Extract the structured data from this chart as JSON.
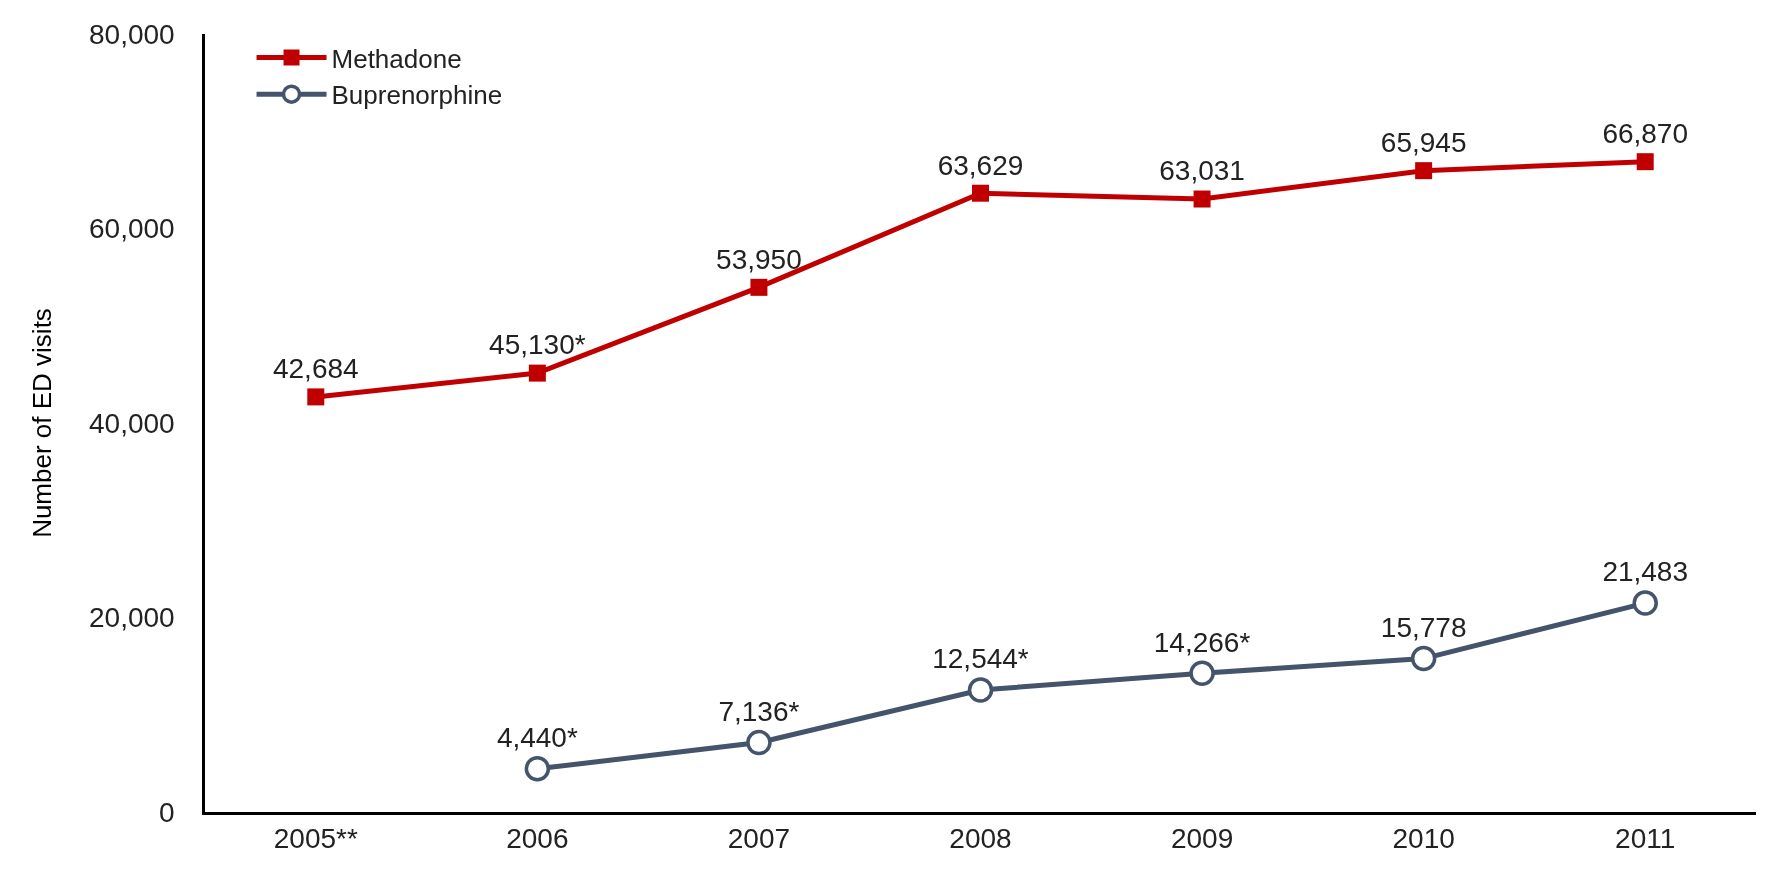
{
  "chart_data": {
    "type": "line",
    "categories": [
      "2005**",
      "2006",
      "2007",
      "2008",
      "2009",
      "2010",
      "2011"
    ],
    "series": [
      {
        "name": "Methadone",
        "color": "#c00000",
        "marker": "square",
        "values": [
          42684,
          45130,
          53950,
          63629,
          63031,
          65945,
          66870
        ],
        "value_labels": [
          "42,684",
          "45,130*",
          "53,950",
          "63,629",
          "63,031",
          "65,945",
          "66,870"
        ]
      },
      {
        "name": "Buprenorphine",
        "color": "#44546a",
        "marker": "circle",
        "values": [
          null,
          4440,
          7136,
          12544,
          14266,
          15778,
          21483
        ],
        "value_labels": [
          null,
          "4,440*",
          "7,136*",
          "12,544*",
          "14,266*",
          "15,778",
          "21,483"
        ]
      }
    ],
    "ylabel": "Number of ED visits",
    "ylim": [
      0,
      80000
    ],
    "yticks": [
      0,
      {
        "value": 20000,
        "label": "20,000"
      },
      {
        "value": 40000,
        "label": "40,000"
      },
      {
        "value": 60000,
        "label": "60,000"
      },
      {
        "value": 80000,
        "label": "80,000"
      }
    ],
    "grid": false,
    "legend": "top left",
    "line_style": "solid"
  }
}
